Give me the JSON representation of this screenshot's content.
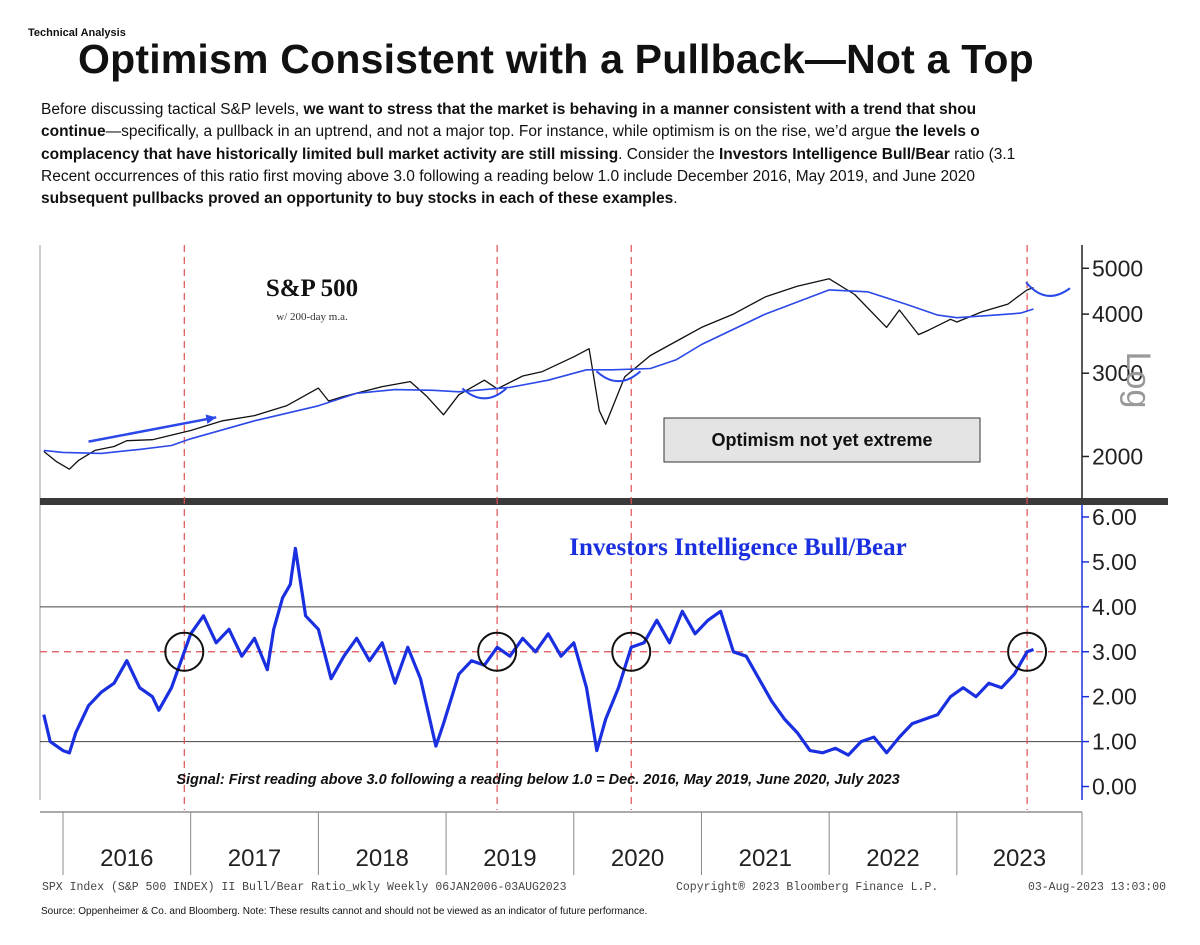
{
  "header": {
    "kicker": "Technical Analysis",
    "title": "Optimism Consistent with a Pullback—Not a Top"
  },
  "intro": {
    "lines": [
      [
        {
          "t": "Before discussing tactical S&P levels, ",
          "b": false
        },
        {
          "t": "we want to stress that the market is behaving in a manner consistent with a trend that shou",
          "b": true
        }
      ],
      [
        {
          "t": "continue",
          "b": true
        },
        {
          "t": "—specifically, a pullback in an uptrend, and not a major top.  For instance, while optimism is on the rise, we’d argue ",
          "b": false
        },
        {
          "t": "the levels o",
          "b": true
        }
      ],
      [
        {
          "t": "complacency that have historically limited bull market activity are still missing",
          "b": true
        },
        {
          "t": ".  Consider the ",
          "b": false
        },
        {
          "t": "Investors Intelligence Bull/Bear",
          "b": true
        },
        {
          "t": " ratio (3.1",
          "b": false
        }
      ],
      [
        {
          "t": "Recent occurrences of this ratio first moving above 3.0 following a reading below 1.0 include December 2016, May 2019, and June 2020",
          "b": false
        }
      ],
      [
        {
          "t": "subsequent pullbacks proved an opportunity to buy stocks in each of these examples",
          "b": true
        },
        {
          "t": ".",
          "b": false
        }
      ]
    ]
  },
  "chart_data": [
    {
      "type": "line",
      "title": "S&P 500",
      "subtitle": "w/ 200-day m.a.",
      "axis_label": "Log",
      "y_scale": "log",
      "y_ticks": [
        2000,
        3000,
        4000,
        5000
      ],
      "y_tick_labels": [
        "2000",
        "3000",
        "4000",
        "5000"
      ],
      "ylim": [
        1650,
        5600
      ],
      "xlim": [
        2015.82,
        2023.98
      ],
      "annotation": "Optimism not yet extreme",
      "series": [
        {
          "name": "S&P 500",
          "color": "#111111",
          "x": [
            2015.85,
            2015.95,
            2016.05,
            2016.12,
            2016.25,
            2016.4,
            2016.5,
            2016.7,
            2016.85,
            2017.0,
            2017.25,
            2017.5,
            2017.75,
            2018.0,
            2018.08,
            2018.2,
            2018.5,
            2018.72,
            2018.85,
            2018.98,
            2019.1,
            2019.3,
            2019.4,
            2019.6,
            2019.75,
            2020.0,
            2020.12,
            2020.2,
            2020.25,
            2020.4,
            2020.6,
            2020.8,
            2021.0,
            2021.25,
            2021.5,
            2021.75,
            2022.0,
            2022.2,
            2022.45,
            2022.55,
            2022.7,
            2022.78,
            2022.95,
            2023.0,
            2023.2,
            2023.4,
            2023.55,
            2023.6
          ],
          "values": [
            2050,
            1950,
            1880,
            1960,
            2060,
            2100,
            2160,
            2170,
            2220,
            2270,
            2380,
            2440,
            2560,
            2790,
            2620,
            2680,
            2810,
            2880,
            2680,
            2450,
            2700,
            2900,
            2780,
            2960,
            3020,
            3250,
            3380,
            2500,
            2340,
            2950,
            3270,
            3500,
            3750,
            4000,
            4350,
            4580,
            4750,
            4400,
            3750,
            4080,
            3620,
            3700,
            3900,
            3850,
            4050,
            4200,
            4500,
            4550
          ]
        },
        {
          "name": "200-day m.a.",
          "color": "#2b48e8",
          "x": [
            2015.85,
            2016.0,
            2016.3,
            2016.6,
            2016.85,
            2017.0,
            2017.5,
            2018.0,
            2018.3,
            2018.6,
            2018.9,
            2019.1,
            2019.5,
            2019.8,
            2020.1,
            2020.3,
            2020.6,
            2020.8,
            2021.0,
            2021.5,
            2022.0,
            2022.3,
            2022.6,
            2022.85,
            2023.0,
            2023.3,
            2023.5,
            2023.6
          ],
          "values": [
            2060,
            2040,
            2030,
            2070,
            2110,
            2180,
            2380,
            2560,
            2720,
            2770,
            2760,
            2740,
            2800,
            2900,
            3050,
            3050,
            3070,
            3200,
            3450,
            4000,
            4500,
            4460,
            4200,
            3980,
            3930,
            3980,
            4020,
            4100
          ]
        }
      ]
    },
    {
      "type": "line",
      "title": "Investors Intelligence Bull/Bear",
      "y_ticks": [
        0,
        1,
        2,
        3,
        4,
        5,
        6
      ],
      "y_tick_labels": [
        "0.00",
        "1.00",
        "2.00",
        "3.00",
        "4.00",
        "5.00",
        "6.00"
      ],
      "ylim": [
        -0.3,
        6.2
      ],
      "xlim": [
        2015.82,
        2023.98
      ],
      "reference_lines": [
        1.0,
        3.0,
        4.0
      ],
      "circled_signals": [
        2016.95,
        2019.4,
        2020.45,
        2023.55
      ],
      "signal_dates": [
        "Dec. 2016",
        "May 2019",
        "June 2020",
        "July 2023"
      ],
      "signal_text": "Signal: First reading above 3.0 following a reading below 1.0 = Dec. 2016, May 2019, June 2020, July 2023",
      "x_categories": [
        "2016",
        "2017",
        "2018",
        "2019",
        "2020",
        "2021",
        "2022",
        "2023"
      ],
      "series": [
        {
          "name": "Bull/Bear Ratio",
          "color": "#1a2fe0",
          "x": [
            2015.85,
            2015.9,
            2016.0,
            2016.05,
            2016.1,
            2016.2,
            2016.3,
            2016.4,
            2016.5,
            2016.55,
            2016.6,
            2016.7,
            2016.75,
            2016.85,
            2016.95,
            2017.0,
            2017.1,
            2017.2,
            2017.3,
            2017.4,
            2017.5,
            2017.6,
            2017.65,
            2017.72,
            2017.78,
            2017.82,
            2017.9,
            2018.0,
            2018.1,
            2018.2,
            2018.3,
            2018.4,
            2018.5,
            2018.6,
            2018.7,
            2018.8,
            2018.92,
            2018.98,
            2019.1,
            2019.2,
            2019.3,
            2019.4,
            2019.5,
            2019.6,
            2019.7,
            2019.8,
            2019.9,
            2020.0,
            2020.1,
            2020.18,
            2020.25,
            2020.35,
            2020.45,
            2020.55,
            2020.65,
            2020.75,
            2020.85,
            2020.95,
            2021.05,
            2021.15,
            2021.25,
            2021.35,
            2021.45,
            2021.55,
            2021.65,
            2021.75,
            2021.85,
            2021.95,
            2022.05,
            2022.15,
            2022.25,
            2022.35,
            2022.45,
            2022.55,
            2022.65,
            2022.75,
            2022.85,
            2022.95,
            2023.05,
            2023.15,
            2023.25,
            2023.35,
            2023.45,
            2023.55,
            2023.6
          ],
          "values": [
            1.6,
            1.0,
            0.8,
            0.75,
            1.2,
            1.8,
            2.1,
            2.3,
            2.8,
            2.5,
            2.2,
            2.0,
            1.7,
            2.2,
            3.0,
            3.4,
            3.8,
            3.2,
            3.5,
            2.9,
            3.3,
            2.6,
            3.5,
            4.2,
            4.5,
            5.3,
            3.8,
            3.5,
            2.4,
            2.9,
            3.3,
            2.8,
            3.2,
            2.3,
            3.1,
            2.4,
            0.9,
            1.4,
            2.5,
            2.8,
            2.7,
            3.1,
            2.9,
            3.3,
            3.0,
            3.4,
            2.9,
            3.2,
            2.2,
            0.8,
            1.5,
            2.2,
            3.1,
            3.2,
            3.7,
            3.2,
            3.9,
            3.4,
            3.7,
            3.9,
            3.0,
            2.9,
            2.4,
            1.9,
            1.5,
            1.2,
            0.8,
            0.75,
            0.85,
            0.7,
            1.0,
            1.1,
            0.75,
            1.1,
            1.4,
            1.5,
            1.6,
            2.0,
            2.2,
            2.0,
            2.3,
            2.2,
            2.5,
            3.0,
            3.05
          ]
        }
      ]
    }
  ],
  "footer": {
    "index_info": "SPX Index (S&P 500 INDEX) II Bull/Bear Ratio_wkly  Weekly 06JAN2006-03AUG2023",
    "copyright": "Copyright® 2023 Bloomberg Finance L.P.",
    "timestamp": "03-Aug-2023 13:03:00",
    "source": "Source:  Oppenheimer & Co. and Bloomberg.  Note: These results cannot and should not be viewed as an indicator of future performance."
  }
}
